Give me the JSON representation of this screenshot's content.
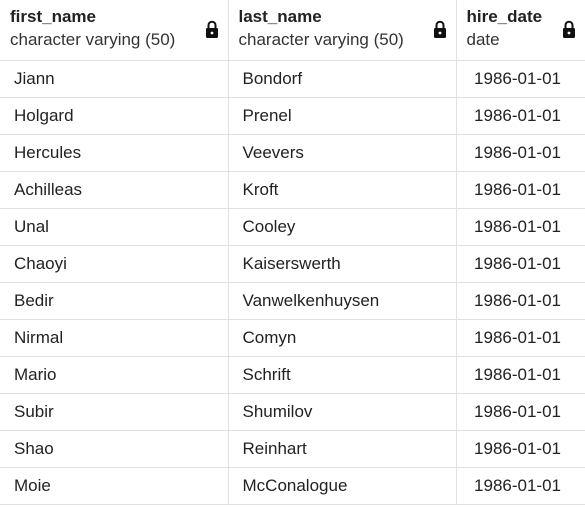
{
  "columns": [
    {
      "name": "first_name",
      "type": "character varying (50)",
      "locked": true
    },
    {
      "name": "last_name",
      "type": "character varying (50)",
      "locked": true
    },
    {
      "name": "hire_date",
      "type": "date",
      "locked": true
    }
  ],
  "rows": [
    [
      "Jiann",
      "Bondorf",
      "1986-01-01"
    ],
    [
      "Holgard",
      "Prenel",
      "1986-01-01"
    ],
    [
      "Hercules",
      "Veevers",
      "1986-01-01"
    ],
    [
      "Achilleas",
      "Kroft",
      "1986-01-01"
    ],
    [
      "Unal",
      "Cooley",
      "1986-01-01"
    ],
    [
      "Chaoyi",
      "Kaiserswerth",
      "1986-01-01"
    ],
    [
      "Bedir",
      "Vanwelkenhuysen",
      "1986-01-01"
    ],
    [
      "Nirmal",
      "Comyn",
      "1986-01-01"
    ],
    [
      "Mario",
      "Schrift",
      "1986-01-01"
    ],
    [
      "Subir",
      "Shumilov",
      "1986-01-01"
    ],
    [
      "Shao",
      "Reinhart",
      "1986-01-01"
    ],
    [
      "Moie",
      "McConalogue",
      "1986-01-01"
    ]
  ],
  "icons": {
    "locked": "lock-icon"
  }
}
